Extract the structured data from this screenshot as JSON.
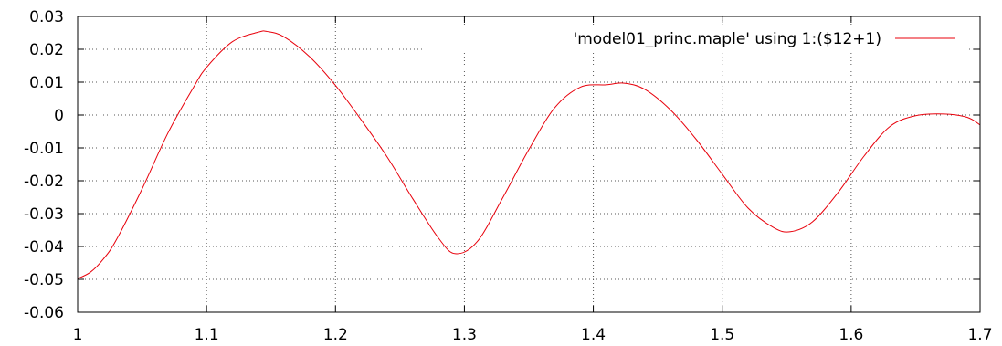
{
  "chart_data": {
    "type": "line",
    "title": "",
    "xlabel": "",
    "ylabel": "",
    "xlim": [
      1,
      1.7
    ],
    "ylim": [
      -0.06,
      0.03
    ],
    "x_ticks": [
      1,
      1.1,
      1.2,
      1.3,
      1.4,
      1.5,
      1.6,
      1.7
    ],
    "x_tick_labels": [
      "1",
      "1.1",
      "1.2",
      "1.3",
      "1.4",
      "1.5",
      "1.6",
      "1.7"
    ],
    "y_ticks": [
      0.03,
      0.02,
      0.01,
      0,
      -0.01,
      -0.02,
      -0.03,
      -0.04,
      -0.05,
      -0.06
    ],
    "y_tick_labels": [
      "0.03",
      "0.02",
      "0.01",
      "0",
      "-0.01",
      "-0.02",
      "-0.03",
      "-0.04",
      "-0.05",
      "-0.06"
    ],
    "grid": true,
    "legend_position": "top-right",
    "colors": {
      "series": "#e8000b",
      "grid": "#555555",
      "axis": "#000000"
    },
    "series": [
      {
        "name": "'model01_princ.maple' using 1:($12+1)",
        "color": "#e8000b",
        "x": [
          1.0,
          1.01,
          1.02,
          1.03,
          1.05,
          1.07,
          1.09,
          1.1,
          1.12,
          1.14,
          1.147,
          1.16,
          1.18,
          1.2,
          1.22,
          1.24,
          1.26,
          1.28,
          1.293,
          1.31,
          1.33,
          1.35,
          1.37,
          1.39,
          1.41,
          1.424,
          1.44,
          1.46,
          1.48,
          1.5,
          1.52,
          1.54,
          1.553,
          1.57,
          1.59,
          1.61,
          1.63,
          1.65,
          1.672,
          1.69,
          1.7
        ],
        "y": [
          -0.0498,
          -0.0478,
          -0.0438,
          -0.038,
          -0.0225,
          -0.0055,
          0.0085,
          0.0145,
          0.0223,
          0.0252,
          0.0254,
          0.0238,
          0.0177,
          0.009,
          -0.0015,
          -0.0127,
          -0.0255,
          -0.0375,
          -0.0422,
          -0.0385,
          -0.025,
          -0.0105,
          0.0022,
          0.0085,
          0.0092,
          0.0097,
          0.0078,
          0.0015,
          -0.0075,
          -0.018,
          -0.0283,
          -0.0343,
          -0.0355,
          -0.0325,
          -0.0235,
          -0.0125,
          -0.0035,
          -0.0002,
          0.0003,
          -0.0007,
          -0.003
        ]
      }
    ]
  }
}
